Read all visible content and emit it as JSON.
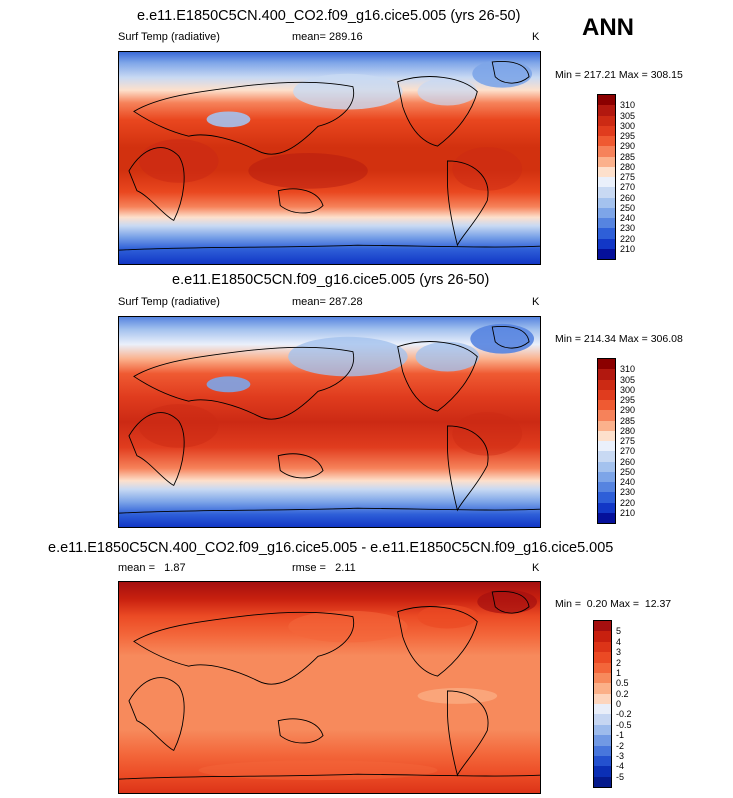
{
  "season": "ANN",
  "panels": [
    {
      "title": "e.e11.E1850C5CN.400_CO2.f09_g16.cice5.005 (yrs 26-50)",
      "left_label": "Surf Temp (radiative)",
      "mid_label": "mean= 289.16",
      "units": "K",
      "minmax": "Min = 217.21 Max = 308.15",
      "colorbar": {
        "labels": [
          "310",
          "305",
          "300",
          "295",
          "290",
          "285",
          "280",
          "275",
          "270",
          "260",
          "250",
          "240",
          "230",
          "220",
          "210"
        ],
        "colors": [
          "#8b0000",
          "#b2180f",
          "#cc2a14",
          "#e03c1e",
          "#ef5a32",
          "#f6825a",
          "#fbb18c",
          "#fde0cc",
          "#eaf0fb",
          "#c8d9f3",
          "#a4c2ee",
          "#7da5e8",
          "#5684e0",
          "#2e5fd8",
          "#1237c6",
          "#05109a"
        ]
      }
    },
    {
      "title": "e.e11.E1850C5CN.f09_g16.cice5.005 (yrs 26-50)",
      "left_label": "Surf Temp (radiative)",
      "mid_label": "mean= 287.28",
      "units": "K",
      "minmax": "Min = 214.34 Max = 306.08",
      "colorbar": {
        "labels": [
          "310",
          "305",
          "300",
          "295",
          "290",
          "285",
          "280",
          "275",
          "270",
          "260",
          "250",
          "240",
          "230",
          "220",
          "210"
        ],
        "colors": [
          "#8b0000",
          "#b2180f",
          "#cc2a14",
          "#e03c1e",
          "#ef5a32",
          "#f6825a",
          "#fbb18c",
          "#fde0cc",
          "#eaf0fb",
          "#c8d9f3",
          "#a4c2ee",
          "#7da5e8",
          "#5684e0",
          "#2e5fd8",
          "#1237c6",
          "#05109a"
        ]
      }
    },
    {
      "title": "e.e11.E1850C5CN.400_CO2.f09_g16.cice5.005 - e.e11.E1850C5CN.f09_g16.cice5.005",
      "left_label": "mean =   1.87",
      "mid_label": "rmse =   2.11",
      "units": "K",
      "minmax": "Min =  0.20 Max =  12.37",
      "colorbar": {
        "labels": [
          "5",
          "4",
          "3",
          "2",
          "1",
          "0.5",
          "0.2",
          "0",
          "-0.2",
          "-0.5",
          "-1",
          "-2",
          "-3",
          "-4",
          "-5"
        ],
        "colors": [
          "#a50f0f",
          "#c8200f",
          "#dc3418",
          "#eb4a24",
          "#f3663a",
          "#f78a5c",
          "#fbb088",
          "#fdd5bd",
          "#e9eef9",
          "#c6d6f2",
          "#9dbbec",
          "#7199e4",
          "#4876dc",
          "#2451cf",
          "#0b2fb5",
          "#051a8c"
        ]
      }
    }
  ]
}
